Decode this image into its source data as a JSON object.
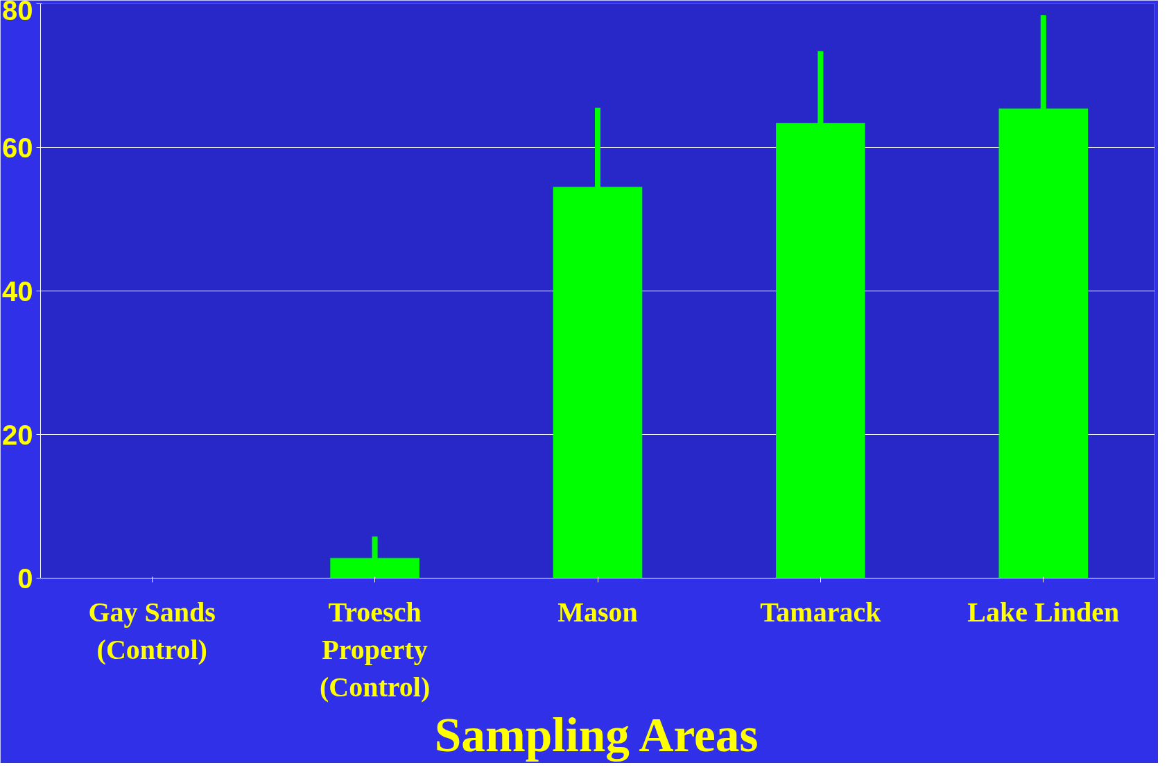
{
  "chart_data": {
    "type": "bar",
    "xlabel": "Sampling Areas",
    "categories": [
      "Gay Sands\n(Control)",
      "Troesch\nProperty\n(Control)",
      "Mason",
      "Tamarack",
      "Lake Linden"
    ],
    "values": [
      0,
      2.8,
      54.5,
      63.4,
      65.4
    ],
    "errors": [
      null,
      3,
      11,
      10,
      13
    ],
    "color": "#00ff00",
    "ylim": [
      0,
      80
    ],
    "yticks": [
      0,
      20,
      40,
      60,
      80
    ],
    "grid": "y"
  }
}
